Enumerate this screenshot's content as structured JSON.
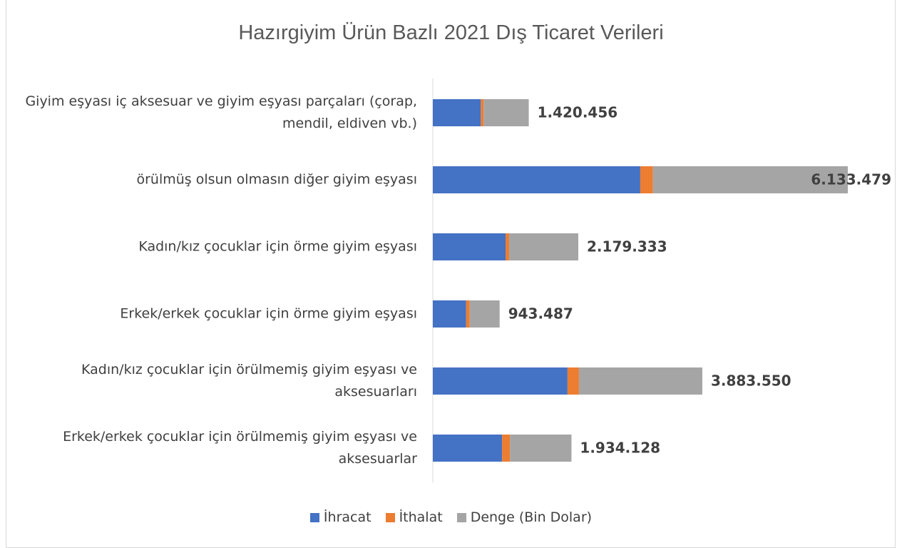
{
  "chart_data": {
    "type": "stacked-bar-horizontal",
    "title": "Hazırgiyim Ürün Bazlı 2021 Dış Ticaret Verileri",
    "categories": [
      "Giyim eşyası iç aksesuar ve giyim eşyası parçaları (çorap, mendil, eldiven vb.)",
      "örülmüş olsun olmasın diğer giyim eşyası",
      "Kadın/kız çocuklar için örme giyim eşyası",
      "Erkek/erkek çocuklar için örme giyim eşyası",
      "Kadın/kız çocuklar için örülmemiş giyim eşyası ve aksesuarları",
      "Erkek/erkek çocuklar için örülmemiş giyim eşyası ve aksesuarlar"
    ],
    "series": [
      {
        "name": "İhracat",
        "color": "#4472c4",
        "values": [
          1510000,
          6530000,
          2290000,
          1050000,
          4240000,
          2180000
        ]
      },
      {
        "name": "İthalat",
        "color": "#ed7d31",
        "values": [
          90000,
          400000,
          110000,
          110000,
          360000,
          250000
        ]
      },
      {
        "name": "Denge (Bin Dolar)",
        "color": "#a5a5a5",
        "values": [
          1420456,
          6133479,
          2179333,
          943487,
          3883550,
          1934128
        ],
        "value_labels": [
          "1.420.456",
          "6.133.479",
          "2.179.333",
          "943.487",
          "3.883.550",
          "1.934.128"
        ]
      }
    ],
    "legend": "bottom"
  }
}
